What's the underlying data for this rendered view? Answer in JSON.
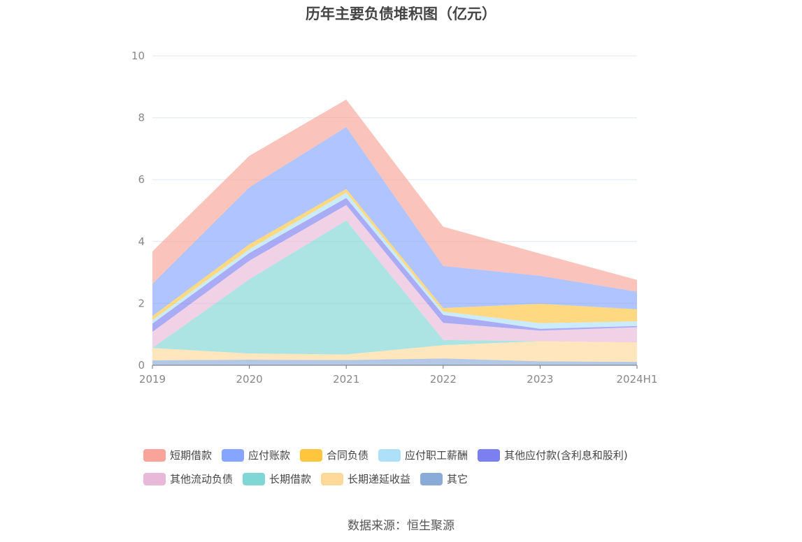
{
  "chart_data": {
    "type": "area",
    "stacked": true,
    "title": "历年主要负债堆积图（亿元）",
    "xlabel": "",
    "ylabel": "",
    "ylim": [
      0,
      10
    ],
    "yticks": [
      "0",
      "2",
      "4",
      "6",
      "8",
      "10"
    ],
    "grid": true,
    "legend_position": "bottom",
    "categories": [
      "2019",
      "2020",
      "2021",
      "2022",
      "2023",
      "2024H1"
    ],
    "series": [
      {
        "name": "其它",
        "color": "#8aaad8",
        "values": [
          0.16,
          0.18,
          0.17,
          0.22,
          0.13,
          0.11
        ]
      },
      {
        "name": "长期递延收益",
        "color": "#ffd99a",
        "values": [
          0.4,
          0.2,
          0.18,
          0.43,
          0.65,
          0.63
        ]
      },
      {
        "name": "长期借款",
        "color": "#7fd6d4",
        "values": [
          0,
          2.4,
          4.33,
          0.17,
          0,
          0
        ]
      },
      {
        "name": "其他流动负债",
        "color": "#e8b8d8",
        "values": [
          0.52,
          0.6,
          0.5,
          0.55,
          0.34,
          0.49
        ]
      },
      {
        "name": "其他应付款(含利息和股利)",
        "color": "#7b7ff0",
        "values": [
          0.27,
          0.25,
          0.23,
          0.26,
          0.06,
          0.04
        ]
      },
      {
        "name": "应付职工薪酬",
        "color": "#aee0fa",
        "values": [
          0.11,
          0.12,
          0.17,
          0.11,
          0.18,
          0.15
        ]
      },
      {
        "name": "合同负债",
        "color": "#ffc53d",
        "values": [
          0.13,
          0.16,
          0.12,
          0.11,
          0.63,
          0.39
        ]
      },
      {
        "name": "应付账款",
        "color": "#85a5ff",
        "values": [
          1.04,
          1.84,
          2.0,
          1.36,
          0.9,
          0.57
        ]
      },
      {
        "name": "短期借款",
        "color": "#f8a49a",
        "values": [
          1.05,
          1.02,
          0.89,
          1.27,
          0.72,
          0.38
        ]
      }
    ],
    "legend_order": [
      [
        "短期借款",
        "应付账款",
        "合同负债",
        "应付职工薪酬",
        "其他应付款(含利息和股利)"
      ],
      [
        "其他流动负债",
        "长期借款",
        "长期递延收益",
        "其它"
      ]
    ]
  },
  "source": "数据来源：恒生聚源"
}
